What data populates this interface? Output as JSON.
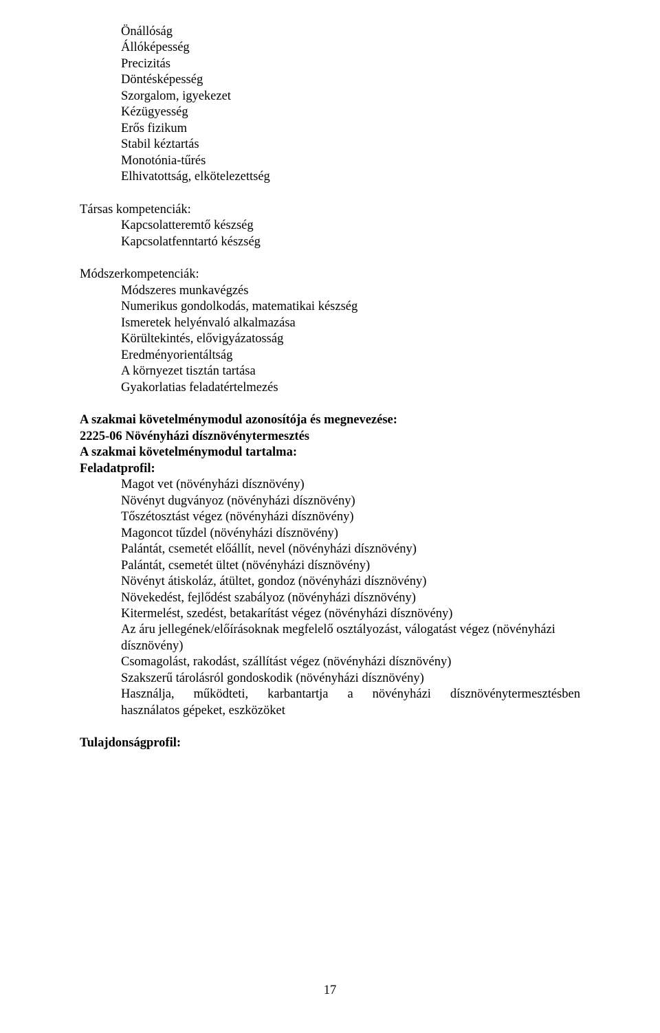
{
  "list1": {
    "items": [
      "Önállóság",
      "Állóképesség",
      "Precizitás",
      "Döntésképesség",
      "Szorgalom, igyekezet",
      "Kézügyesség",
      "Erős fizikum",
      "Stabil kéztartás",
      "Monotónia-tűrés",
      "Elhivatottság, elkötelezettség"
    ]
  },
  "group2": {
    "heading": "Társas kompetenciák:",
    "items": [
      "Kapcsolatteremtő készség",
      "Kapcsolatfenntartó készség"
    ]
  },
  "group3": {
    "heading": "Módszerkompetenciák:",
    "items": [
      "Módszeres munkavégzés",
      "Numerikus gondolkodás, matematikai készség",
      "Ismeretek helyénvaló alkalmazása",
      "Körültekintés, elővigyázatosság",
      "Eredményorientáltság",
      "A környezet tisztán tartása",
      "Gyakorlatias feladatértelmezés"
    ]
  },
  "module": {
    "heading1": "A szakmai követelménymodul azonosítója és megnevezése:",
    "code_line": "2225-06  Növényházi dísznövénytermesztés",
    "heading2": "A szakmai követelménymodul tartalma:",
    "heading3": "Feladatprofil:",
    "items": [
      "Magot vet (növényházi dísznövény)",
      "Növényt dugványoz (növényházi dísznövény)",
      "Tőszétosztást végez (növényházi dísznövény)",
      "Magoncot tűzdel (növényházi dísznövény)",
      "Palántát, csemetét előállít, nevel (növényházi dísznövény)",
      "Palántát, csemetét ültet (növényházi dísznövény)",
      "Növényt átiskoláz, átültet, gondoz (növényházi dísznövény)",
      "Növekedést, fejlődést szabályoz (növényházi dísznövény)",
      "Kitermelést, szedést, betakarítást végez (növényházi dísznövény)",
      "Az áru jellegének/előírásoknak megfelelő osztályozást, válogatást végez (növényházi dísznövény)",
      "Csomagolást, rakodást, szállítást végez (növényházi dísznövény)",
      "Szakszerű tárolásról gondoskodik (növényházi dísznövény)"
    ],
    "justify_words": [
      "Használja,",
      "működteti,",
      "karbantartja",
      "a",
      "növényházi",
      "dísznövénytermesztésben"
    ],
    "last_line": "használatos gépeket, eszközöket"
  },
  "footer_heading": "Tulajdonságprofil:",
  "page_number": "17"
}
